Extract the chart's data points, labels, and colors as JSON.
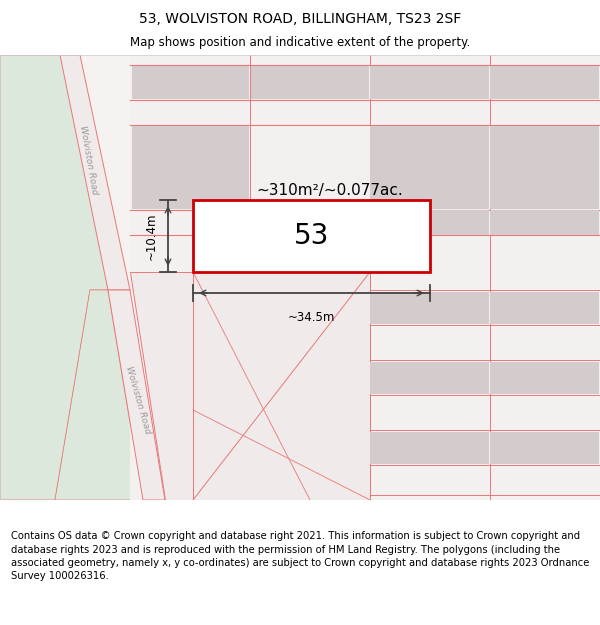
{
  "title": "53, WOLVISTON ROAD, BILLINGHAM, TS23 2SF",
  "subtitle": "Map shows position and indicative extent of the property.",
  "footer": "Contains OS data © Crown copyright and database right 2021. This information is subject to Crown copyright and database rights 2023 and is reproduced with the permission of HM Land Registry. The polygons (including the associated geometry, namely x, y co-ordinates) are subject to Crown copyright and database rights 2023 Ordnance Survey 100026316.",
  "title_fontsize": 10,
  "subtitle_fontsize": 8.5,
  "footer_fontsize": 7.2,
  "label_53": "53",
  "area_label": "~310m²/~0.077ac.",
  "width_label": "~34.5m",
  "height_label": "~10.4m",
  "map_bg": "#f7f2f2",
  "road_line_color": "#e87878",
  "building_fill": "#d4cccc",
  "green_fill": "#dde8dd",
  "road_fill": "#f0eaea",
  "highlight_color": "#cc0000"
}
